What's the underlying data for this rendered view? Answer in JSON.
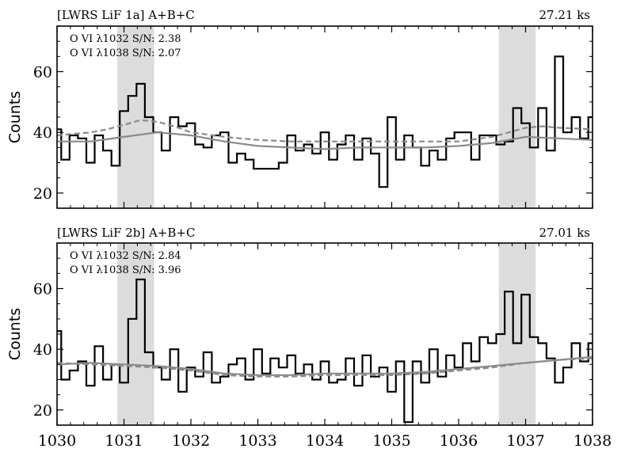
{
  "chart_data": [
    {
      "type": "line",
      "title": "[LWRS LiF 1a] A+B+C",
      "exposure": "27.21 ks",
      "annotations": [
        "O VI λ1032 S/N: 2.38",
        "O VI λ1038 S/N: 2.07"
      ],
      "ylabel": "Counts",
      "xlabel": "",
      "xlim": [
        1030,
        1038
      ],
      "ylim": [
        15,
        75
      ],
      "yticks": [
        20,
        40,
        60
      ],
      "shaded_regions": [
        [
          1030.9,
          1031.45
        ],
        [
          1036.6,
          1037.15
        ]
      ],
      "grid": false,
      "series": [
        {
          "role": "data",
          "style": "step-black",
          "x": [
            1030.0,
            1030.125,
            1030.25,
            1030.375,
            1030.5,
            1030.625,
            1030.75,
            1030.875,
            1031.0,
            1031.125,
            1031.25,
            1031.375,
            1031.5,
            1031.625,
            1031.75,
            1031.875,
            1032.0,
            1032.125,
            1032.25,
            1032.375,
            1032.5,
            1032.625,
            1032.75,
            1032.875,
            1033.0,
            1033.125,
            1033.25,
            1033.375,
            1033.5,
            1033.625,
            1033.75,
            1033.875,
            1034.0,
            1034.125,
            1034.25,
            1034.375,
            1034.5,
            1034.625,
            1034.75,
            1034.875,
            1035.0,
            1035.125,
            1035.25,
            1035.375,
            1035.5,
            1035.625,
            1035.75,
            1035.875,
            1036.0,
            1036.125,
            1036.25,
            1036.375,
            1036.5,
            1036.625,
            1036.75,
            1036.875,
            1037.0,
            1037.125,
            1037.25,
            1037.375,
            1037.5,
            1037.625,
            1037.75,
            1037.875,
            1038.0
          ],
          "y": [
            41,
            31,
            39,
            38,
            30,
            39,
            34,
            29,
            47,
            52,
            56,
            45,
            40,
            34,
            45,
            42,
            43,
            36,
            35,
            39,
            40,
            30,
            33,
            31,
            28,
            28,
            28,
            30,
            39,
            34,
            36,
            33,
            40,
            31,
            36,
            39,
            31,
            38,
            33,
            22,
            45,
            31,
            39,
            35,
            29,
            34,
            31,
            38,
            40,
            40,
            31,
            39,
            39,
            36,
            37,
            48,
            43,
            35,
            48,
            34,
            65,
            40,
            45,
            38,
            45
          ]
        },
        {
          "role": "model-total",
          "style": "dashed-gray",
          "x": [
            1030.0,
            1030.5,
            1030.75,
            1031.0,
            1031.25,
            1031.5,
            1031.75,
            1032.0,
            1032.5,
            1033.0,
            1033.5,
            1034.0,
            1034.5,
            1035.0,
            1035.5,
            1036.0,
            1036.5,
            1036.75,
            1037.0,
            1037.25,
            1037.5,
            1038.0
          ],
          "y": [
            39,
            40,
            41,
            42.5,
            44,
            43.5,
            42,
            40,
            38.5,
            37.5,
            37,
            37,
            37,
            37,
            37,
            37,
            38.5,
            40,
            41.5,
            42,
            41.5,
            41
          ]
        },
        {
          "role": "model-continuum",
          "style": "solid-gray",
          "x": [
            1030.0,
            1030.5,
            1031.0,
            1031.5,
            1032.0,
            1032.5,
            1033.0,
            1033.5,
            1034.0,
            1034.5,
            1035.0,
            1035.5,
            1036.0,
            1036.5,
            1037.0,
            1037.5,
            1038.0
          ],
          "y": [
            37,
            37,
            38.5,
            40,
            39,
            37,
            35.5,
            35,
            34.5,
            35,
            35,
            35,
            35.5,
            36.5,
            38.5,
            38,
            37.5
          ]
        }
      ]
    },
    {
      "type": "line",
      "title": "[LWRS LiF 2b] A+B+C",
      "exposure": "27.01 ks",
      "annotations": [
        "O VI λ1032 S/N: 2.84",
        "O VI λ1038 S/N: 3.96"
      ],
      "ylabel": "Counts",
      "xlabel": "",
      "xlim": [
        1030,
        1038
      ],
      "ylim": [
        15,
        75
      ],
      "yticks": [
        20,
        40,
        60
      ],
      "xticks": [
        1030,
        1031,
        1032,
        1033,
        1034,
        1035,
        1036,
        1037,
        1038
      ],
      "shaded_regions": [
        [
          1030.9,
          1031.45
        ],
        [
          1036.6,
          1037.15
        ]
      ],
      "grid": false,
      "series": [
        {
          "role": "data",
          "style": "step-black",
          "x": [
            1030.0,
            1030.125,
            1030.25,
            1030.375,
            1030.5,
            1030.625,
            1030.75,
            1030.875,
            1031.0,
            1031.125,
            1031.25,
            1031.375,
            1031.5,
            1031.625,
            1031.75,
            1031.875,
            1032.0,
            1032.125,
            1032.25,
            1032.375,
            1032.5,
            1032.625,
            1032.75,
            1032.875,
            1033.0,
            1033.125,
            1033.25,
            1033.375,
            1033.5,
            1033.625,
            1033.75,
            1033.875,
            1034.0,
            1034.125,
            1034.25,
            1034.375,
            1034.5,
            1034.625,
            1034.75,
            1034.875,
            1035.0,
            1035.125,
            1035.25,
            1035.375,
            1035.5,
            1035.625,
            1035.75,
            1035.875,
            1036.0,
            1036.125,
            1036.25,
            1036.375,
            1036.5,
            1036.625,
            1036.75,
            1036.875,
            1037.0,
            1037.125,
            1037.25,
            1037.375,
            1037.5,
            1037.625,
            1037.75,
            1037.875,
            1038.0
          ],
          "y": [
            46,
            30,
            33,
            36,
            28,
            41,
            30,
            35,
            29,
            50,
            63,
            39,
            34,
            30,
            40,
            26,
            34,
            31,
            39,
            29,
            31,
            35,
            37,
            30,
            40,
            32,
            37,
            34,
            38,
            32,
            35,
            30,
            36,
            29,
            30,
            37,
            28,
            38,
            31,
            34,
            26,
            36,
            16,
            36,
            29,
            40,
            31,
            38,
            34,
            42,
            36,
            44,
            42,
            45,
            59,
            42,
            58,
            44,
            42,
            37,
            29,
            34,
            42,
            36,
            42
          ]
        },
        {
          "role": "model-total",
          "style": "dashed-gray",
          "x": [
            1030.0,
            1030.5,
            1031.0,
            1031.5,
            1032.0,
            1032.5,
            1033.0,
            1033.5,
            1034.0,
            1034.5,
            1035.0,
            1035.5,
            1036.0,
            1036.5,
            1037.0,
            1037.5,
            1038.0
          ],
          "y": [
            35.5,
            35,
            34.5,
            34,
            33,
            31.5,
            31,
            31,
            31.5,
            31.5,
            31.5,
            32,
            33,
            34,
            35.5,
            36.5,
            37
          ]
        },
        {
          "role": "model-continuum",
          "style": "solid-gray",
          "x": [
            1030.0,
            1030.5,
            1031.0,
            1031.5,
            1032.0,
            1032.5,
            1033.0,
            1033.5,
            1034.0,
            1034.5,
            1035.0,
            1035.5,
            1036.0,
            1036.5,
            1037.0,
            1037.5,
            1038.0
          ],
          "y": [
            35,
            35.5,
            35,
            34.5,
            33.5,
            32,
            31.5,
            31.5,
            32,
            32,
            32,
            32.5,
            33.5,
            34.5,
            35.5,
            36.5,
            37.5
          ]
        }
      ]
    }
  ]
}
